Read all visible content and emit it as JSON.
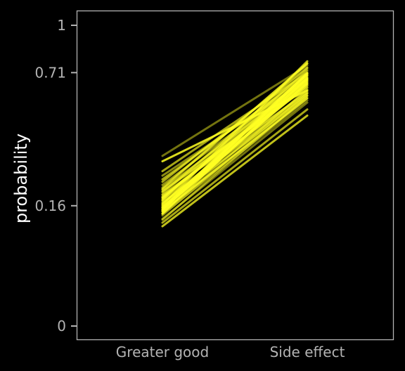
{
  "chart_data": {
    "type": "line",
    "title": "",
    "xlabel": "",
    "ylabel": "probability",
    "categories": [
      "Greater good",
      "Side effect"
    ],
    "y_ticks": [
      0,
      0.16,
      0.71,
      1
    ],
    "y_tick_labels": [
      "0",
      "0.16",
      "0.71",
      "1"
    ],
    "ylim": [
      0,
      1
    ],
    "y_scale": "sqrt",
    "grid": false,
    "legend": "none",
    "line_color": "#FFFF22",
    "background": "#000000",
    "series": [
      {
        "values": [
          0.16,
          0.676
        ]
      },
      {
        "values": [
          0.14,
          0.62
        ]
      },
      {
        "values": [
          0.175,
          0.7
        ]
      },
      {
        "values": [
          0.185,
          0.646
        ]
      },
      {
        "values": [
          0.15,
          0.662
        ]
      },
      {
        "values": [
          0.197,
          0.718
        ]
      },
      {
        "values": [
          0.212,
          0.76
        ]
      },
      {
        "values": [
          0.23,
          0.738
        ]
      },
      {
        "values": [
          0.168,
          0.597
        ]
      },
      {
        "values": [
          0.145,
          0.574
        ]
      },
      {
        "values": [
          0.138,
          0.563
        ]
      },
      {
        "values": [
          0.25,
          0.674
        ]
      },
      {
        "values": [
          0.265,
          0.708
        ]
      },
      {
        "values": [
          0.2,
          0.63
        ]
      },
      {
        "values": [
          0.155,
          0.708
        ]
      },
      {
        "values": [
          0.178,
          0.761
        ]
      },
      {
        "values": [
          0.125,
          0.585
        ]
      },
      {
        "values": [
          0.118,
          0.519
        ]
      },
      {
        "values": [
          0.11,
          0.49
        ]
      },
      {
        "values": [
          0.3,
          0.614
        ]
      },
      {
        "values": [
          0.32,
          0.75
        ]
      },
      {
        "values": [
          0.22,
          0.683
        ]
      },
      {
        "values": [
          0.19,
          0.604
        ]
      },
      {
        "values": [
          0.162,
          0.775
        ]
      },
      {
        "values": [
          0.15,
          0.652
        ]
      },
      {
        "values": [
          0.135,
          0.599
        ]
      },
      {
        "values": [
          0.181,
          0.656
        ]
      },
      {
        "values": [
          0.205,
          0.672
        ]
      },
      {
        "values": [
          0.165,
          0.64
        ]
      },
      {
        "values": [
          0.14,
          0.68
        ]
      },
      {
        "values": [
          0.192,
          0.735
        ]
      },
      {
        "values": [
          0.172,
          0.611
        ]
      },
      {
        "values": [
          0.238,
          0.696
        ]
      },
      {
        "values": [
          0.158,
          0.587
        ]
      },
      {
        "values": [
          0.147,
          0.704
        ]
      },
      {
        "values": [
          0.127,
          0.552
        ]
      },
      {
        "values": [
          0.176,
          0.725
        ]
      },
      {
        "values": [
          0.208,
          0.764
        ]
      },
      {
        "values": [
          0.182,
          0.668
        ]
      },
      {
        "values": [
          0.154,
          0.692
        ]
      }
    ]
  }
}
